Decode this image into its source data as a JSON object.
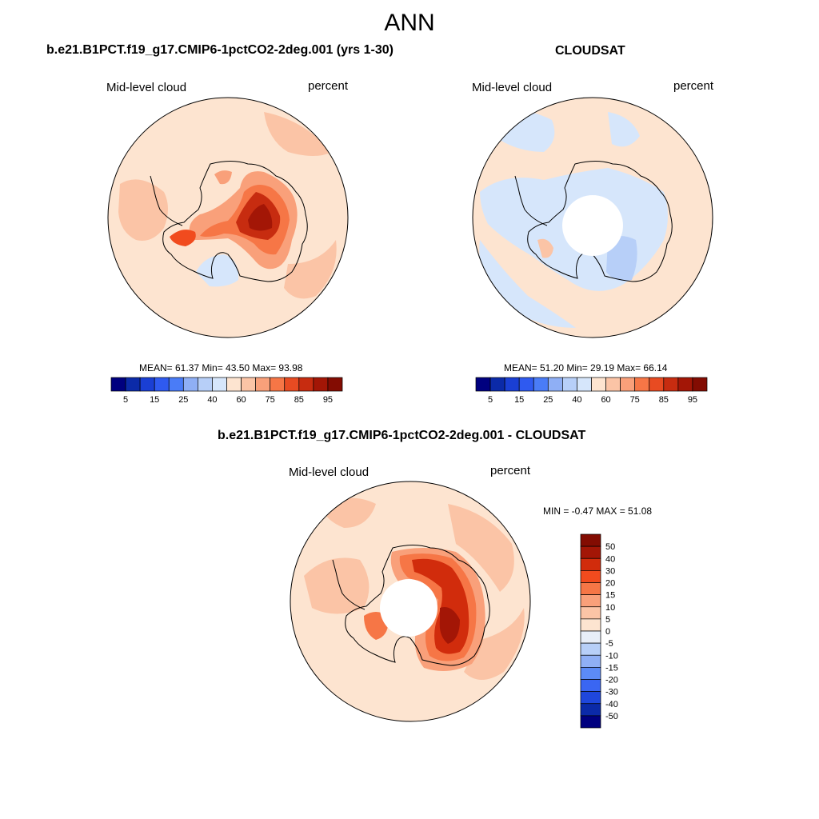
{
  "figure": {
    "title": "ANN",
    "domain": "Computer-Use figure (polar stereographic climate maps)"
  },
  "chart_data": [
    {
      "type": "heatmap",
      "id": "model",
      "title": "b.e21.B1PCT.f19_g17.CMIP6-1pctCO2-2deg.001 (yrs 1-30)",
      "left_label": "Mid-level cloud",
      "right_label": "percent",
      "stats_text": "MEAN=  61.37  Min=  43.50  Max=  93.98",
      "mean": 61.37,
      "min": 43.5,
      "max": 93.98,
      "colorbar_ticks": [
        "5",
        "15",
        "25",
        "40",
        "60",
        "75",
        "85",
        "95"
      ],
      "colorbar_levels": [
        5,
        10,
        15,
        20,
        25,
        30,
        40,
        50,
        60,
        70,
        75,
        80,
        85,
        90,
        95
      ],
      "colorbar_colors": [
        "#00007f",
        "#0b2aa8",
        "#1a3fd4",
        "#2f5af0",
        "#4a7cf7",
        "#8faff5",
        "#b7cff8",
        "#d6e6fb",
        "#fde4d0",
        "#fbc4a6",
        "#f9a07a",
        "#f67646",
        "#e84b22",
        "#c72c10",
        "#a31606",
        "#830c02"
      ]
    },
    {
      "type": "heatmap",
      "id": "obs",
      "title": "CLOUDSAT",
      "left_label": "Mid-level cloud",
      "right_label": "percent",
      "stats_text": "MEAN=  51.20  Min=  29.19  Max=  66.14",
      "mean": 51.2,
      "min": 29.19,
      "max": 66.14,
      "colorbar_ticks": [
        "5",
        "15",
        "25",
        "40",
        "60",
        "75",
        "85",
        "95"
      ]
    },
    {
      "type": "heatmap",
      "id": "diff",
      "title": "b.e21.B1PCT.f19_g17.CMIP6-1pctCO2-2deg.001 - CLOUDSAT",
      "left_label": "Mid-level cloud",
      "right_label": "percent",
      "stats_text": "MIN =  -0.47 MAX =  51.08",
      "min": -0.47,
      "max": 51.08,
      "colorbar_ticks": [
        "50",
        "40",
        "30",
        "20",
        "15",
        "10",
        "5",
        "0",
        "-5",
        "-10",
        "-15",
        "-20",
        "-30",
        "-40",
        "-50"
      ],
      "colorbar_colors": [
        "#830c02",
        "#a31606",
        "#d12c0c",
        "#f14b1e",
        "#f67646",
        "#f9a07a",
        "#fbc4a6",
        "#fde4d0",
        "#e8eef8",
        "#b7cff8",
        "#8faff5",
        "#5c8bf6",
        "#3a66f2",
        "#1f47dc",
        "#0b2aa8",
        "#00007f"
      ]
    }
  ],
  "colors": {
    "ocean_model": "#fde4d0",
    "ocean_obs": "#fde4d0",
    "light_blue": "#d6e6fb",
    "mid_blue": "#b7cff8",
    "strong_red": "#c72c10",
    "dark_red": "#830c02",
    "orange": "#f67646",
    "salmon": "#f9a07a"
  }
}
